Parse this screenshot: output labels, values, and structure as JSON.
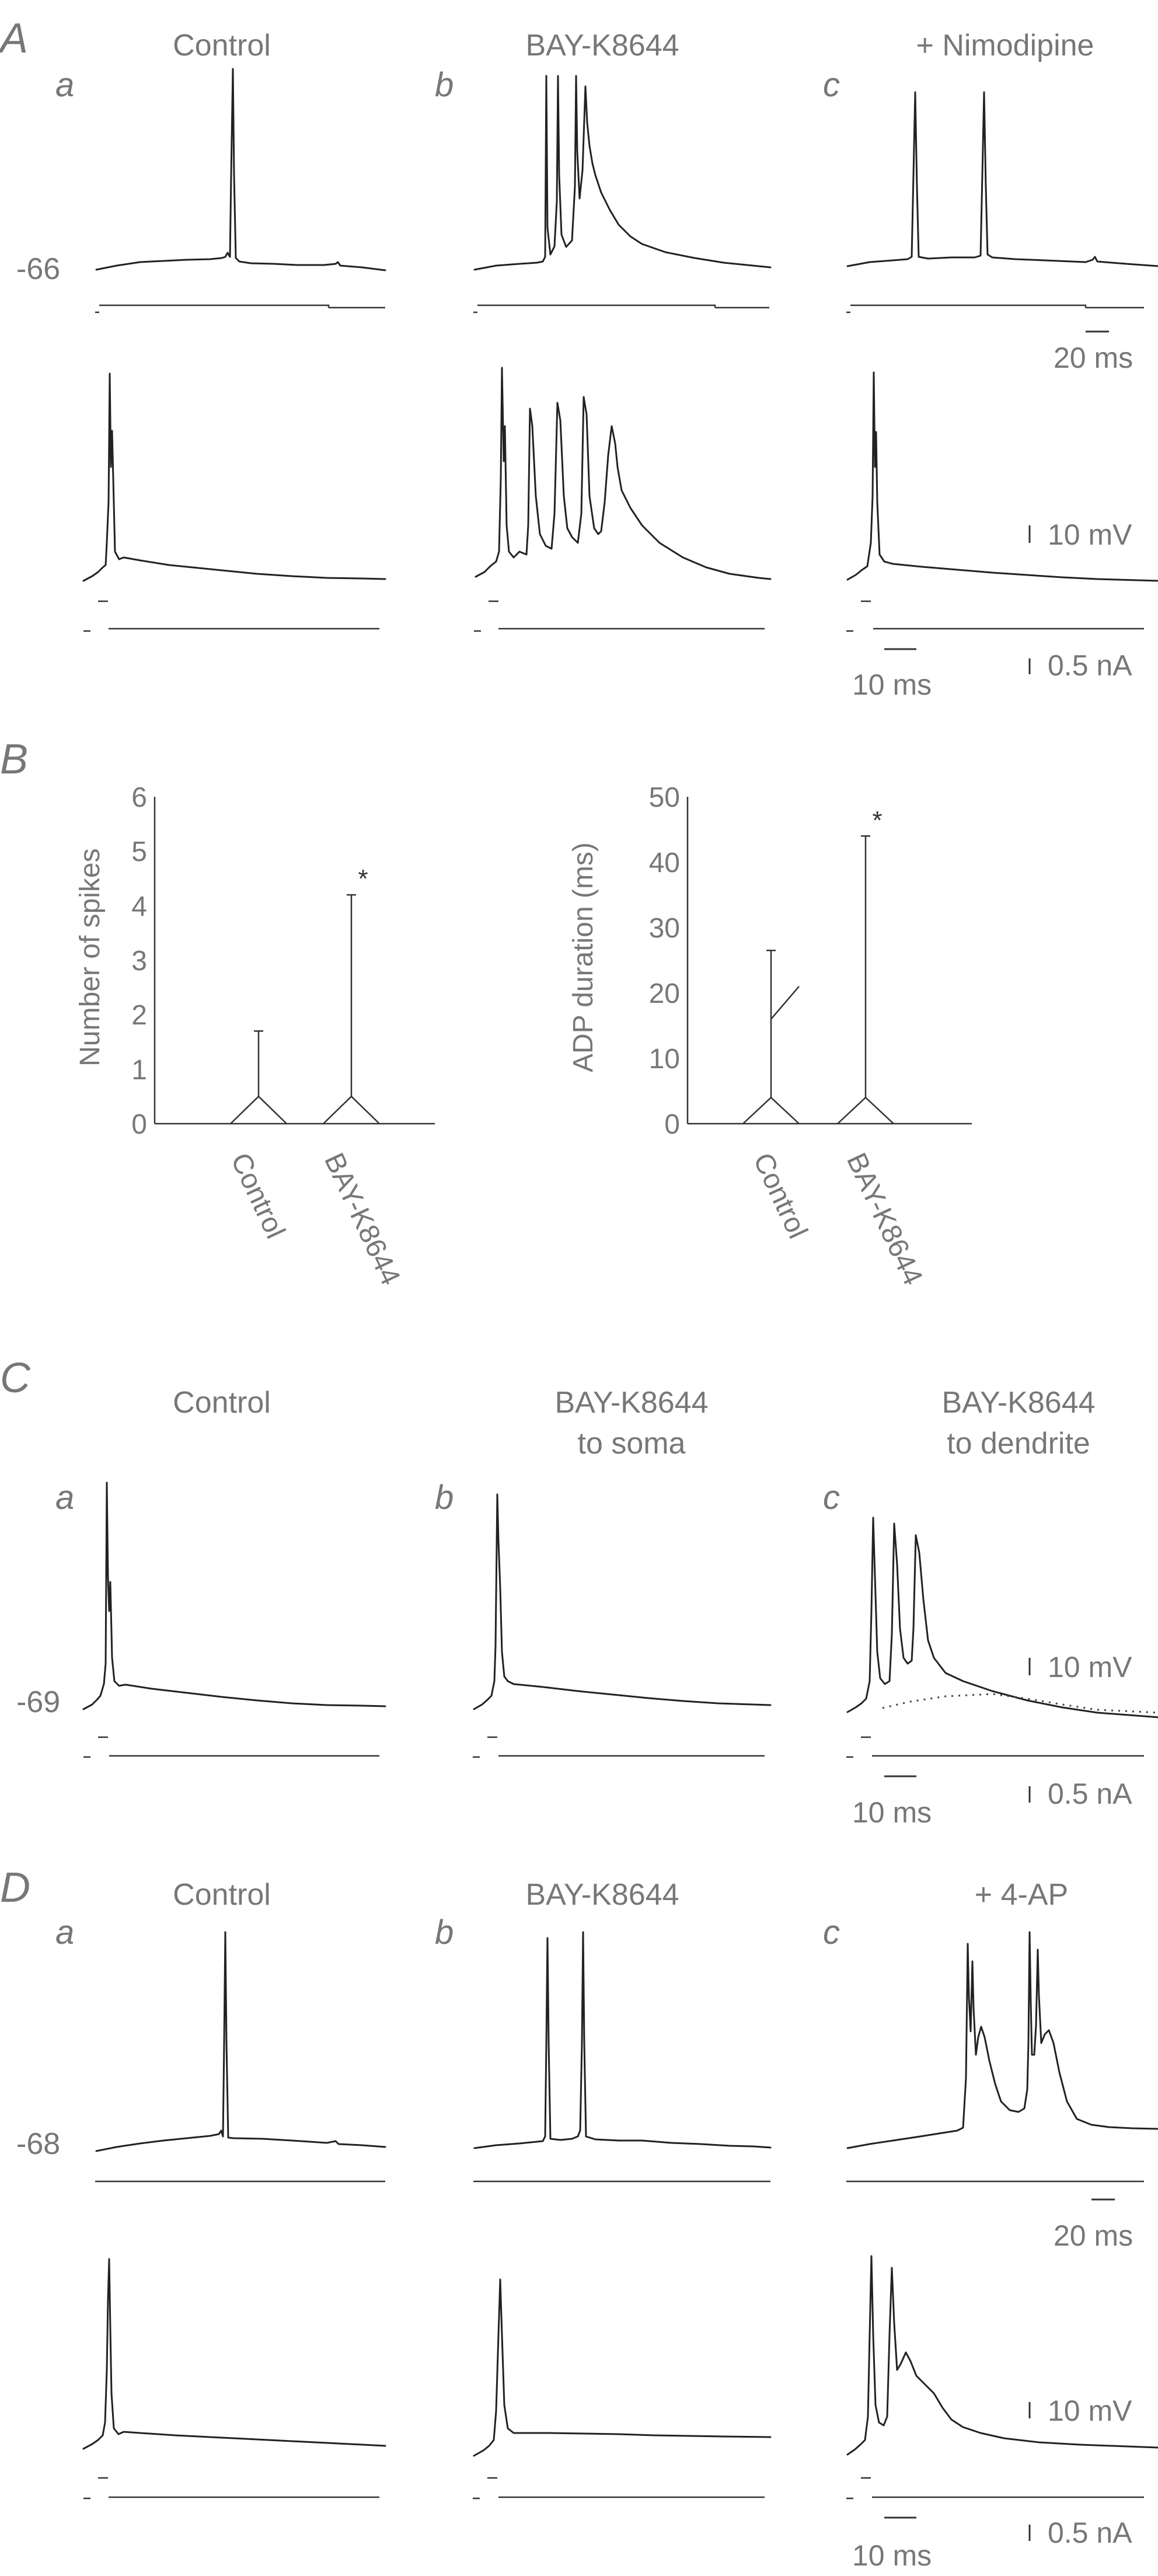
{
  "panels": {
    "A": {
      "letter": "A",
      "sub": [
        "a",
        "b",
        "c"
      ],
      "titles": [
        "Control",
        "BAY-K8644",
        "+ Nimodipine"
      ],
      "resting_potential": "-66",
      "scale_time_slow": "20 ms",
      "scale_voltage": "10 mV",
      "scale_time_fast": "10 ms",
      "scale_current": "0.5 nA"
    },
    "B": {
      "letter": "B",
      "spikes_chart": {
        "y_title": "Number of spikes",
        "y_ticks": [
          "0",
          "1",
          "2",
          "3",
          "4",
          "5",
          "6"
        ],
        "categories": [
          "Control",
          "BAY-K8644"
        ],
        "significance": "*"
      },
      "adp_chart": {
        "y_title": "ADP duration (ms)",
        "y_ticks": [
          "0",
          "10",
          "20",
          "30",
          "40",
          "50"
        ],
        "categories": [
          "Control",
          "BAY-K8644"
        ],
        "significance": "*"
      }
    },
    "C": {
      "letter": "C",
      "sub": [
        "a",
        "b",
        "c"
      ],
      "title_a": "Control",
      "title_b_line1": "BAY-K8644",
      "title_b_line2": "to soma",
      "title_c_line1": "BAY-K8644",
      "title_c_line2": "to dendrite",
      "resting_potential": "-69",
      "scale_voltage": "10 mV",
      "scale_time": "10 ms",
      "scale_current": "0.5 nA"
    },
    "D": {
      "letter": "D",
      "sub": [
        "a",
        "b",
        "c"
      ],
      "titles": [
        "Control",
        "BAY-K8644",
        "+ 4-AP"
      ],
      "resting_potential": "-68",
      "scale_time_slow": "20 ms",
      "scale_voltage": "10 mV",
      "scale_time_fast": "10 ms",
      "scale_current": "0.5 nA"
    }
  },
  "chart_data": [
    {
      "type": "bar",
      "categories": [
        "Control",
        "BAY-K8644"
      ],
      "values": [
        0.5,
        0.5
      ],
      "error_upper": [
        1.7,
        4.2
      ],
      "ylabel": "Number of spikes",
      "ylim": [
        0,
        6
      ],
      "significance": [
        "",
        "*"
      ]
    },
    {
      "type": "bar",
      "categories": [
        "Control",
        "BAY-K8644"
      ],
      "values": [
        4,
        4
      ],
      "error_upper": [
        26.5,
        44
      ],
      "ylabel": "ADP duration (ms)",
      "ylim": [
        0,
        50
      ],
      "significance": [
        "",
        "*"
      ]
    }
  ]
}
